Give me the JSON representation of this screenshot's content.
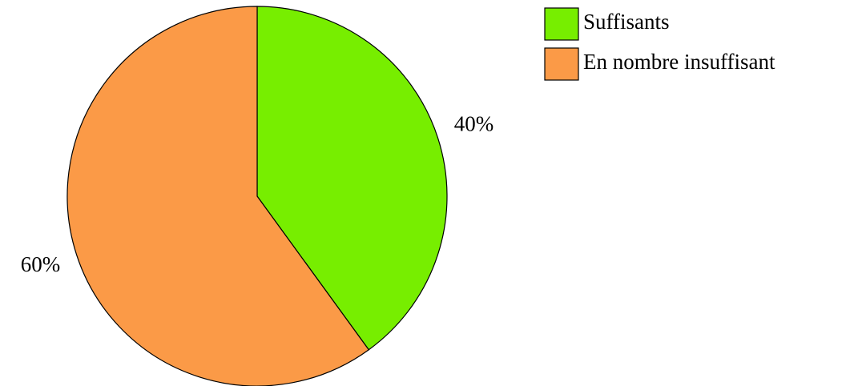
{
  "chart_data": {
    "type": "pie",
    "categories": [
      "Suffisants",
      "En nombre insuffisant"
    ],
    "values": [
      40,
      60
    ],
    "value_labels": [
      "40%",
      "60%"
    ],
    "colors": [
      "#77ee00",
      "#fb9a47"
    ],
    "legend": "top-right"
  }
}
